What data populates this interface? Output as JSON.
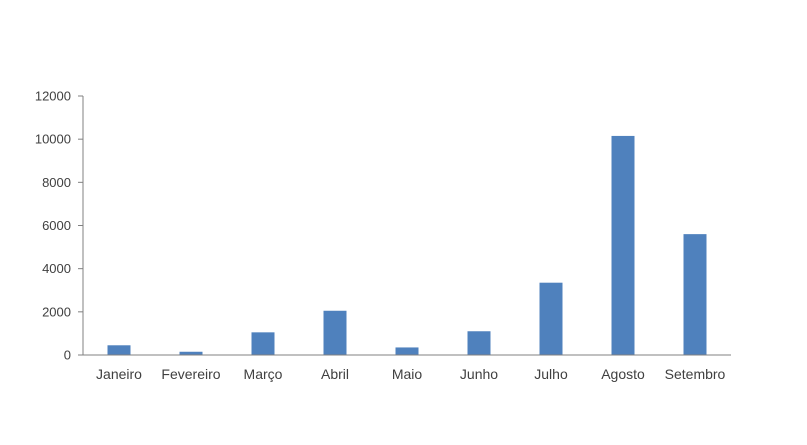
{
  "chart_data": {
    "type": "bar",
    "title": "",
    "xlabel": "",
    "ylabel": "",
    "categories": [
      "Janeiro",
      "Fevereiro",
      "Março",
      "Abril",
      "Maio",
      "Junho",
      "Julho",
      "Agosto",
      "Setembro"
    ],
    "values": [
      450,
      150,
      1050,
      2050,
      350,
      1100,
      3350,
      10150,
      5600
    ],
    "ylim": [
      0,
      12000
    ],
    "yticks": [
      0,
      2000,
      4000,
      6000,
      8000,
      10000,
      12000
    ],
    "grid": false,
    "legend": "none",
    "bar_color": "#4f81bd"
  }
}
